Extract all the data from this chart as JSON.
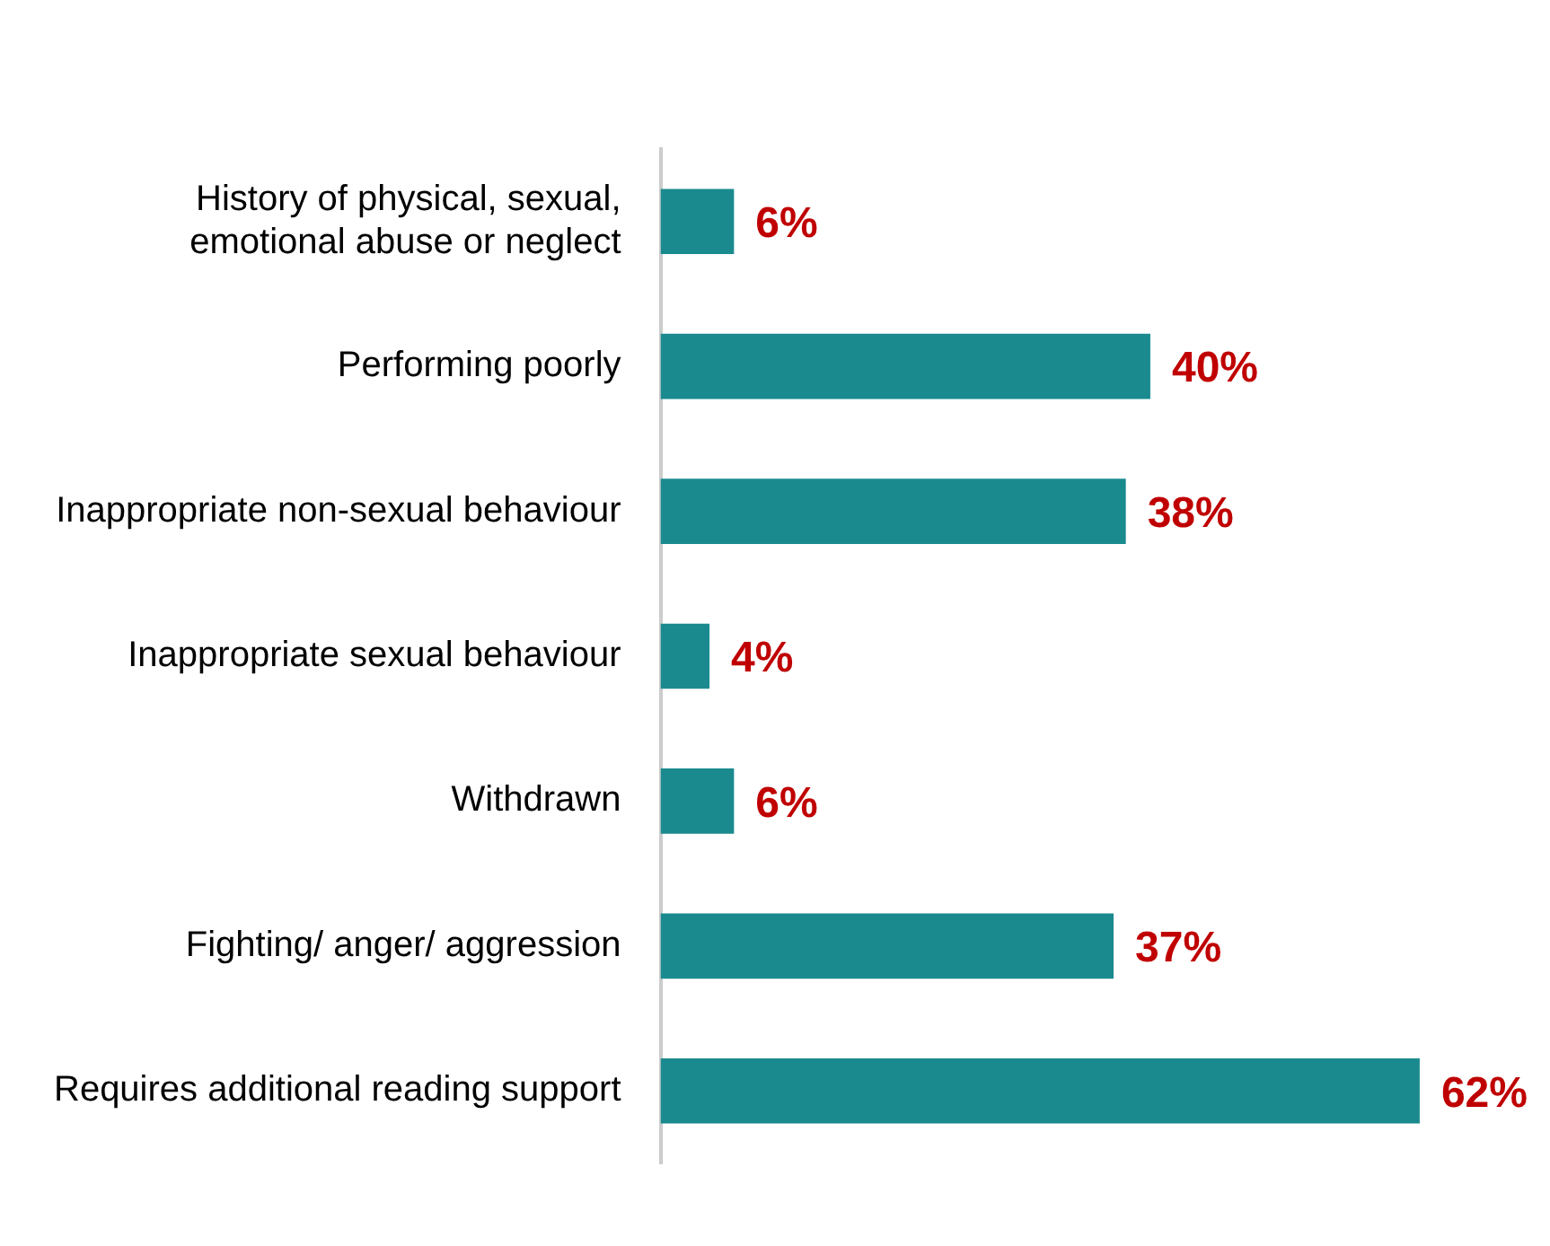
{
  "chart_data": {
    "type": "bar",
    "orientation": "horizontal",
    "categories": [
      "History of physical, sexual, emotional abuse or neglect",
      "Performing poorly",
      "Inappropriate non-sexual behaviour",
      "Inappropriate sexual behaviour",
      "Withdrawn",
      "Fighting/ anger/ aggression",
      "Requires additional reading support"
    ],
    "values": [
      6,
      40,
      38,
      4,
      6,
      37,
      62
    ],
    "value_labels": [
      "6%",
      "40%",
      "38%",
      "4%",
      "6%",
      "37%",
      "62%"
    ],
    "color": "#1a8a8f",
    "grid": false,
    "legend": false
  }
}
